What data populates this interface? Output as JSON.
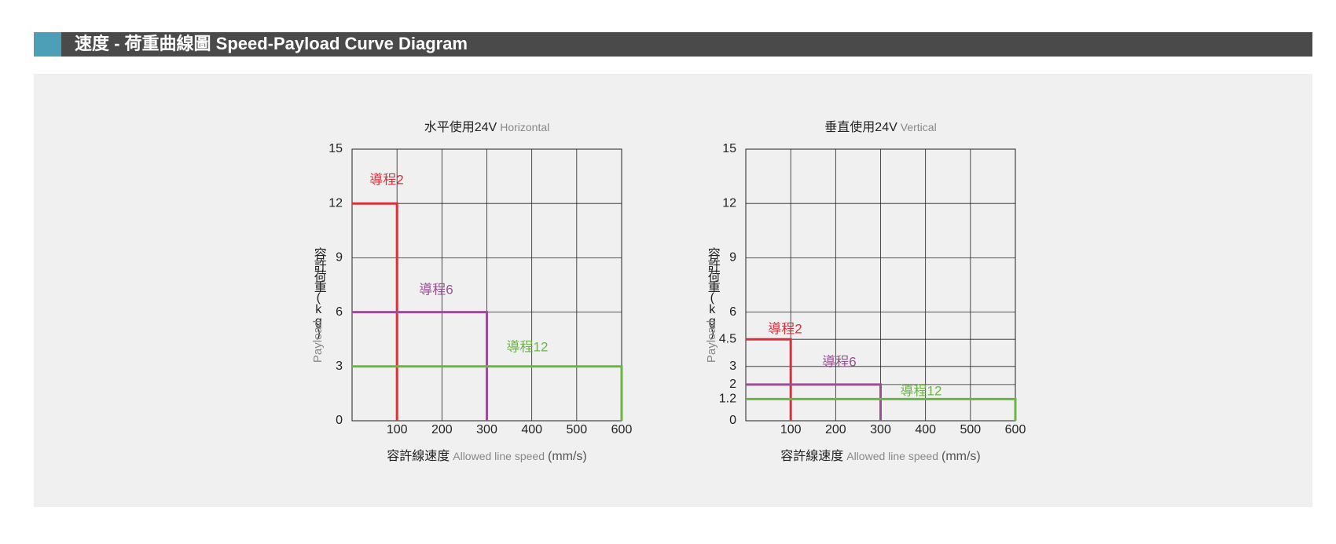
{
  "header": {
    "title": "速度 - 荷重曲線圖 Speed-Payload Curve Diagram"
  },
  "chart_data": [
    {
      "type": "line",
      "title": "水平使用24V",
      "subtitle": "Horizontal",
      "y_label": "容許荷重(kg)",
      "y_label_en": "Payload",
      "x_label": "容許線速度",
      "x_label_en": "Allowed line speed",
      "x_unit": "(mm/s)",
      "xlim": [
        0,
        600
      ],
      "xticks": [
        100,
        200,
        300,
        400,
        500,
        600
      ],
      "ylim": [
        0,
        15
      ],
      "yticks": [
        0,
        3,
        6,
        9,
        12,
        15
      ],
      "grid": true,
      "series": [
        {
          "name": "導程2",
          "color": "#d9303a",
          "x": [
            0,
            100,
            100
          ],
          "values": [
            12,
            12,
            0
          ]
        },
        {
          "name": "導程6",
          "color": "#9b4e96",
          "x": [
            0,
            300,
            300
          ],
          "values": [
            6,
            6,
            0
          ]
        },
        {
          "name": "導程12",
          "color": "#6ab544",
          "x": [
            0,
            600,
            600
          ],
          "values": [
            3,
            3,
            0
          ]
        }
      ]
    },
    {
      "type": "line",
      "title": "垂直使用24V",
      "subtitle": "Vertical",
      "y_label": "容許荷重(kg)",
      "y_label_en": "Payload",
      "x_label": "容許線速度",
      "x_label_en": "Allowed line speed",
      "x_unit": "(mm/s)",
      "xlim": [
        0,
        600
      ],
      "xticks": [
        100,
        200,
        300,
        400,
        500,
        600
      ],
      "ylim": [
        0,
        15
      ],
      "yticks": [
        0,
        1.2,
        2,
        3,
        4.5,
        6,
        9,
        12,
        15
      ],
      "grid": true,
      "series": [
        {
          "name": "導程2",
          "color": "#d9303a",
          "x": [
            0,
            100,
            100
          ],
          "values": [
            4.5,
            4.5,
            0
          ]
        },
        {
          "name": "導程6",
          "color": "#9b4e96",
          "x": [
            0,
            300,
            300
          ],
          "values": [
            2,
            2,
            0
          ]
        },
        {
          "name": "導程12",
          "color": "#6ab544",
          "x": [
            0,
            600,
            600
          ],
          "values": [
            1.2,
            1.2,
            0
          ]
        }
      ]
    }
  ]
}
